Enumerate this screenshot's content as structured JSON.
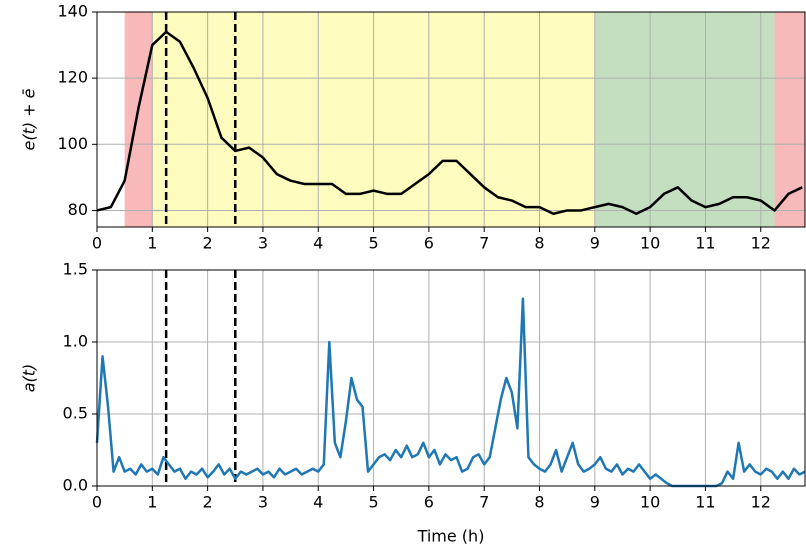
{
  "chart_data": [
    {
      "type": "line",
      "ylabel": "e(t) + ē",
      "xlim": [
        0,
        12.8
      ],
      "ylim": [
        75,
        140
      ],
      "xticks": [
        0,
        1,
        2,
        3,
        4,
        5,
        6,
        7,
        8,
        9,
        10,
        11,
        12
      ],
      "yticks": [
        80,
        100,
        120,
        140
      ],
      "grid": true,
      "spans": [
        {
          "start": 0.5,
          "end": 1,
          "color": "#f7b9b9"
        },
        {
          "start": 1,
          "end": 9,
          "color": "#fdfbbd"
        },
        {
          "start": 9,
          "end": 12.25,
          "color": "#c3dfc0"
        },
        {
          "start": 12.25,
          "end": 12.8,
          "color": "#f7b9b9"
        }
      ],
      "vlines": [
        1.25,
        2.5
      ],
      "x": [
        0,
        0.25,
        0.5,
        0.75,
        1,
        1.25,
        1.5,
        1.75,
        2,
        2.25,
        2.5,
        2.75,
        3,
        3.25,
        3.5,
        3.75,
        4,
        4.25,
        4.5,
        4.75,
        5,
        5.25,
        5.5,
        5.75,
        6,
        6.25,
        6.5,
        6.75,
        7,
        7.25,
        7.5,
        7.75,
        8,
        8.25,
        8.5,
        8.75,
        9,
        9.25,
        9.5,
        9.75,
        10,
        10.25,
        10.5,
        10.75,
        11,
        11.25,
        11.5,
        11.75,
        12,
        12.25,
        12.5,
        12.75
      ],
      "series": [
        {
          "color": "#000000",
          "values": [
            80,
            81,
            89,
            111,
            130,
            134,
            131,
            123,
            114,
            102,
            98,
            99,
            96,
            91,
            89,
            88,
            88,
            88,
            85,
            85,
            86,
            85,
            85,
            88,
            91,
            95,
            95,
            91,
            87,
            84,
            83,
            81,
            81,
            79,
            80,
            80,
            81,
            82,
            81,
            79,
            81,
            85,
            87,
            83,
            81,
            82,
            84,
            84,
            83,
            80,
            85,
            87
          ]
        }
      ]
    },
    {
      "type": "line",
      "ylabel": "a(t)",
      "xlabel": "Time (h)",
      "xlim": [
        0,
        12.8
      ],
      "ylim": [
        0,
        1.5
      ],
      "xticks": [
        0,
        1,
        2,
        3,
        4,
        5,
        6,
        7,
        8,
        9,
        10,
        11,
        12
      ],
      "yticks": [
        {
          "value": 0,
          "label": "0.0"
        },
        0.5,
        {
          "value": 1,
          "label": "1.0"
        },
        1.5
      ],
      "grid": true,
      "vlines": [
        1.25,
        2.5
      ],
      "x": [
        0,
        0.1,
        0.2,
        0.3,
        0.4,
        0.5,
        0.6,
        0.7,
        0.8,
        0.9,
        1,
        1.1,
        1.2,
        1.3,
        1.4,
        1.5,
        1.6,
        1.7,
        1.8,
        1.9,
        2,
        2.1,
        2.2,
        2.3,
        2.4,
        2.5,
        2.6,
        2.7,
        2.8,
        2.9,
        3,
        3.1,
        3.2,
        3.3,
        3.4,
        3.5,
        3.6,
        3.7,
        3.8,
        3.9,
        4,
        4.1,
        4.2,
        4.3,
        4.4,
        4.5,
        4.6,
        4.7,
        4.8,
        4.9,
        5,
        5.1,
        5.2,
        5.3,
        5.4,
        5.5,
        5.6,
        5.7,
        5.8,
        5.9,
        6,
        6.1,
        6.2,
        6.3,
        6.4,
        6.5,
        6.6,
        6.7,
        6.8,
        6.9,
        7,
        7.1,
        7.2,
        7.3,
        7.4,
        7.5,
        7.6,
        7.7,
        7.8,
        7.9,
        8,
        8.1,
        8.2,
        8.3,
        8.4,
        8.5,
        8.6,
        8.7,
        8.8,
        8.9,
        9,
        9.1,
        9.2,
        9.3,
        9.4,
        9.5,
        9.6,
        9.7,
        9.8,
        9.9,
        10,
        10.1,
        10.2,
        10.3,
        10.4,
        11.2,
        11.3,
        11.4,
        11.5,
        11.6,
        11.7,
        11.8,
        11.9,
        12,
        12.1,
        12.2,
        12.3,
        12.4,
        12.5,
        12.6,
        12.7,
        12.8
      ],
      "series": [
        {
          "color": "#1f77b4",
          "values": [
            0.3,
            0.9,
            0.55,
            0.1,
            0.2,
            0.1,
            0.12,
            0.08,
            0.15,
            0.1,
            0.12,
            0.08,
            0.2,
            0.15,
            0.1,
            0.12,
            0.05,
            0.1,
            0.08,
            0.12,
            0.06,
            0.1,
            0.15,
            0.08,
            0.12,
            0.05,
            0.1,
            0.08,
            0.1,
            0.12,
            0.08,
            0.1,
            0.06,
            0.12,
            0.08,
            0.1,
            0.12,
            0.08,
            0.1,
            0.12,
            0.1,
            0.15,
            1.0,
            0.3,
            0.2,
            0.45,
            0.75,
            0.6,
            0.55,
            0.1,
            0.15,
            0.2,
            0.22,
            0.18,
            0.25,
            0.2,
            0.28,
            0.2,
            0.22,
            0.3,
            0.2,
            0.25,
            0.15,
            0.22,
            0.18,
            0.2,
            0.1,
            0.12,
            0.2,
            0.22,
            0.15,
            0.2,
            0.4,
            0.6,
            0.75,
            0.65,
            0.4,
            1.3,
            0.2,
            0.15,
            0.12,
            0.1,
            0.15,
            0.25,
            0.1,
            0.2,
            0.3,
            0.15,
            0.1,
            0.12,
            0.15,
            0.2,
            0.12,
            0.1,
            0.15,
            0.08,
            0.12,
            0.1,
            0.15,
            0.1,
            0.05,
            0.08,
            0.05,
            0.02,
            0,
            0,
            0.02,
            0.1,
            0.05,
            0.3,
            0.1,
            0.15,
            0.1,
            0.08,
            0.12,
            0.1,
            0.05,
            0.1,
            0.05,
            0.12,
            0.08,
            0.1
          ]
        }
      ]
    }
  ]
}
